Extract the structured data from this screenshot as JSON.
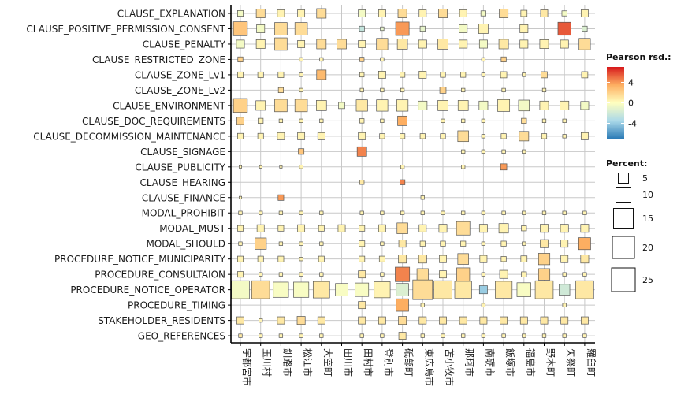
{
  "chart_data": {
    "type": "heatmap",
    "variant": "balloon",
    "rows": [
      "CLAUSE_EXPLANATION",
      "CLAUSE_POSITIVE_PERMISSION_CONSENT",
      "CLAUSE_PENALTY",
      "CLAUSE_RESTRICTED_ZONE",
      "CLAUSE_ZONE_Lv1",
      "CLAUSE_ZONE_Lv2",
      "CLAUSE_ENVIRONMENT",
      "CLAUSE_DOC_REQUIREMENTS",
      "CLAUSE_DECOMMISSION_MAINTENANCE",
      "CLAUSE_SIGNAGE",
      "CLAUSE_PUBLICITY",
      "CLAUSE_HEARING",
      "CLAUSE_FINANCE",
      "MODAL_PROHIBIT",
      "MODAL_MUST",
      "MODAL_SHOULD",
      "PROCEDURE_NOTICE_MUNICIPARITY",
      "PROCEDURE_CONSULTAION",
      "PROCEDURE_NOTICE_OPERATOR",
      "PROCEDURE_TIMING",
      "STAKEHOLDER_RESIDENTS",
      "GEO_REFERENCES"
    ],
    "columns": [
      "宇都宮市",
      "玉川村",
      "釧路市",
      "松江市",
      "大空町",
      "田川市",
      "田村市",
      "登別市",
      "砥部町",
      "東広島市",
      "苫小牧市",
      "那珂市",
      "南砺市",
      "飯塚市",
      "福島市",
      "野木町",
      "矢祭町",
      "羅臼町"
    ],
    "size_values": [
      [
        2.5,
        6,
        4,
        4,
        7,
        0,
        4,
        4,
        6,
        4,
        6,
        4,
        2,
        6,
        3,
        4,
        2,
        4
      ],
      [
        15,
        5,
        12,
        12,
        0,
        0,
        2,
        1,
        14,
        2,
        0,
        5,
        7,
        0,
        5,
        0,
        13,
        2
      ],
      [
        5,
        6,
        12,
        4,
        7,
        7,
        4,
        10,
        8,
        5,
        8,
        5,
        5,
        7,
        5,
        6,
        5,
        10
      ],
      [
        2,
        0,
        0,
        1,
        1,
        0,
        1.5,
        1,
        0,
        0,
        0,
        0,
        1,
        2,
        0,
        0,
        0,
        0
      ],
      [
        2.5,
        2.5,
        2.5,
        1,
        7,
        0,
        1.5,
        4,
        2,
        4,
        2,
        2,
        1,
        3,
        1,
        3,
        0,
        3
      ],
      [
        0,
        0,
        2,
        1,
        0,
        0,
        1,
        1,
        1,
        0,
        3,
        1,
        0,
        1,
        0,
        1,
        0,
        0
      ],
      [
        15,
        7,
        12,
        12,
        8,
        3,
        10,
        10,
        10,
        6,
        8,
        8,
        6,
        11,
        9,
        6,
        6,
        5
      ],
      [
        4,
        2,
        1,
        1,
        1,
        0,
        1.5,
        1,
        7,
        0,
        1,
        1,
        1,
        0,
        2,
        1,
        1,
        0
      ],
      [
        2.5,
        2.5,
        4,
        4,
        4,
        0,
        4,
        2,
        2,
        2,
        2,
        9,
        1,
        2,
        7,
        2,
        1,
        4
      ],
      [
        0,
        0,
        0,
        2.5,
        0,
        0,
        7,
        0,
        0,
        0,
        0,
        1,
        1,
        1,
        1,
        0,
        0,
        0
      ],
      [
        0.5,
        0.5,
        0.5,
        1,
        0,
        0,
        0,
        0,
        1,
        0,
        0,
        1,
        0,
        3,
        0,
        0,
        0,
        0
      ],
      [
        0,
        0,
        0,
        0,
        0,
        0,
        1.5,
        0,
        2,
        0,
        0,
        0,
        0,
        0,
        0,
        0,
        0,
        0
      ],
      [
        0.5,
        0,
        2.5,
        0,
        0,
        0,
        0,
        0,
        0,
        1,
        0,
        0,
        0,
        0,
        0,
        0,
        0,
        0
      ],
      [
        1,
        1,
        1,
        1,
        1,
        0,
        1,
        1,
        1,
        1,
        1,
        1,
        1,
        1,
        1,
        1,
        1,
        1
      ],
      [
        2.5,
        4,
        2.5,
        4,
        2.5,
        4,
        2.5,
        4,
        9,
        4,
        5,
        14,
        5,
        7,
        2,
        5,
        5,
        5
      ],
      [
        1,
        10,
        1,
        1,
        1,
        0,
        2.5,
        1,
        4,
        2,
        2,
        2,
        1,
        2,
        1,
        5,
        4,
        11
      ],
      [
        2.5,
        2.5,
        2.5,
        1,
        2.5,
        0,
        2.5,
        2.5,
        5,
        5,
        4,
        9,
        4,
        2,
        3,
        10,
        4,
        5
      ],
      [
        2.5,
        1,
        1,
        1,
        1,
        0,
        4,
        1,
        16,
        10,
        4,
        13,
        1,
        5,
        2,
        10,
        1,
        1
      ],
      [
        25,
        25,
        18,
        18,
        21,
        12,
        14,
        20,
        12,
        30,
        25,
        22,
        5,
        22,
        15,
        25,
        9,
        25
      ],
      [
        0,
        0,
        0,
        0,
        0,
        0,
        4,
        0,
        12,
        1,
        0,
        0,
        1,
        0,
        0,
        0,
        1,
        0
      ],
      [
        4,
        1,
        4,
        5,
        4,
        0,
        4,
        4,
        5,
        4,
        4,
        4,
        4,
        4,
        4,
        4,
        4,
        4
      ],
      [
        1,
        1,
        1,
        1,
        1,
        0,
        1,
        1,
        4,
        1,
        1,
        1,
        1,
        1,
        1,
        1,
        1,
        1
      ]
    ],
    "color_values": [
      [
        -0.5,
        1.5,
        0.5,
        0.5,
        1.5,
        0,
        -0.5,
        0.5,
        1.5,
        0.5,
        1.5,
        0.5,
        -0.5,
        1.5,
        0.5,
        1,
        -0.5,
        0.5
      ],
      [
        2.5,
        -0.5,
        1.5,
        1.5,
        0,
        0,
        -2.5,
        -1,
        4,
        -1,
        0,
        -0.5,
        0.5,
        0,
        0.5,
        0,
        5.5,
        -1.5
      ],
      [
        -0.5,
        0.5,
        1.5,
        0.5,
        1.5,
        1.5,
        0.5,
        1.5,
        1,
        0.5,
        1,
        0.5,
        -0.5,
        1,
        0.5,
        0.5,
        0.5,
        1.5
      ],
      [
        2,
        0,
        0,
        0.5,
        0.5,
        0,
        2,
        0.5,
        0,
        0,
        0,
        0,
        0.5,
        2,
        0,
        0,
        0,
        0
      ],
      [
        0.5,
        0.5,
        0.5,
        0.5,
        3,
        0,
        0.5,
        0.5,
        0.5,
        0.5,
        0.5,
        0.5,
        0.5,
        0.5,
        0.5,
        1.5,
        0,
        0.5
      ],
      [
        0,
        0,
        1.5,
        0.5,
        0,
        0,
        0.5,
        0.5,
        0.5,
        0,
        2,
        0.5,
        0,
        0.5,
        0,
        0.5,
        0,
        0
      ],
      [
        2,
        0.5,
        1.5,
        1.5,
        0.5,
        -0.5,
        1,
        0.5,
        0.5,
        -0.5,
        0.5,
        0.5,
        -0.5,
        0.5,
        -0.5,
        0.5,
        0.5,
        -0.5
      ],
      [
        2,
        0.5,
        0.5,
        0.5,
        0.5,
        0,
        0.5,
        0.5,
        3.5,
        0,
        0.5,
        0.5,
        0.5,
        0,
        1.5,
        0.5,
        0.5,
        0
      ],
      [
        0.5,
        0.5,
        0.5,
        0.5,
        0.5,
        0,
        0.5,
        0.5,
        0.5,
        0.5,
        0.5,
        1.5,
        0.5,
        0.5,
        1.5,
        0.5,
        0.5,
        0.5
      ],
      [
        0,
        0,
        0,
        2.5,
        0,
        0,
        4.5,
        0,
        0,
        0,
        0,
        0.5,
        0.5,
        0.5,
        0.5,
        0,
        0,
        0
      ],
      [
        0.5,
        0.5,
        0.5,
        0.5,
        0,
        0,
        0,
        0,
        0.5,
        0,
        0,
        0.5,
        0,
        4,
        0,
        0,
        0,
        0
      ],
      [
        0,
        0,
        0,
        0,
        0,
        0,
        1,
        0,
        4.5,
        0,
        0,
        0,
        0,
        0,
        0,
        0,
        0,
        0
      ],
      [
        0.5,
        0,
        4,
        0,
        0,
        0,
        0,
        0,
        0,
        0.5,
        0,
        0,
        0,
        0,
        0,
        0,
        0,
        0
      ],
      [
        0.5,
        0.5,
        0.5,
        0.5,
        0.5,
        0,
        0.5,
        0.5,
        0.5,
        0.5,
        0.5,
        0.5,
        0.5,
        0.5,
        0.5,
        0.5,
        0.5,
        0.5
      ],
      [
        0.5,
        0.5,
        0.5,
        0.5,
        0.5,
        0.5,
        0.5,
        0.5,
        1.5,
        0.5,
        0.5,
        1.5,
        0.5,
        0.5,
        0.5,
        0.5,
        0.5,
        0.5
      ],
      [
        0.5,
        2,
        0.5,
        0.5,
        0.5,
        0,
        0.5,
        0.5,
        1,
        0.5,
        0.5,
        0.5,
        0.5,
        0.5,
        0.5,
        1,
        0.5,
        3.5
      ],
      [
        0.5,
        0.5,
        0.5,
        0.5,
        0.5,
        0,
        0.5,
        0.5,
        1,
        1,
        0.5,
        1.5,
        0.5,
        0.5,
        0.5,
        2,
        0.5,
        1
      ],
      [
        0.5,
        0.5,
        0.5,
        0.5,
        0.5,
        0,
        1,
        0.5,
        4.5,
        1.5,
        0.5,
        2,
        0.5,
        0.5,
        0.5,
        2,
        0.5,
        0.5
      ],
      [
        -0.5,
        1.5,
        -0.3,
        -0.3,
        1,
        -0.3,
        -0.3,
        0.5,
        -1.5,
        1.5,
        1,
        1,
        -4,
        1,
        -0.3,
        1,
        -2,
        1
      ],
      [
        0,
        0,
        0,
        0,
        0,
        0,
        1,
        0,
        3.5,
        0.5,
        0,
        0,
        0.5,
        0,
        0,
        0,
        0.5,
        0
      ],
      [
        1,
        0.5,
        1,
        1.5,
        1,
        0,
        1,
        1,
        1.5,
        1,
        1,
        1,
        1,
        1,
        1,
        1,
        1,
        1
      ],
      [
        1,
        0.5,
        0.5,
        0.5,
        0.5,
        0,
        0.5,
        0.5,
        1,
        0.5,
        0.5,
        0.5,
        0.5,
        0.5,
        0.5,
        0.5,
        0.5,
        0.5
      ]
    ],
    "color_legend": {
      "title": "Pearson rsd.:",
      "ticks": [
        4,
        0,
        -4
      ],
      "range": [
        -7,
        7
      ]
    },
    "size_legend": {
      "title": "Percent:",
      "values": [
        5,
        10,
        15,
        20,
        25
      ]
    },
    "colors": {
      "neg": "#2c7bb6",
      "mid": "#ffffbf",
      "pos": "#d7191c",
      "grid": "#c8c8c8",
      "axis": "#000000"
    },
    "grid": true
  }
}
